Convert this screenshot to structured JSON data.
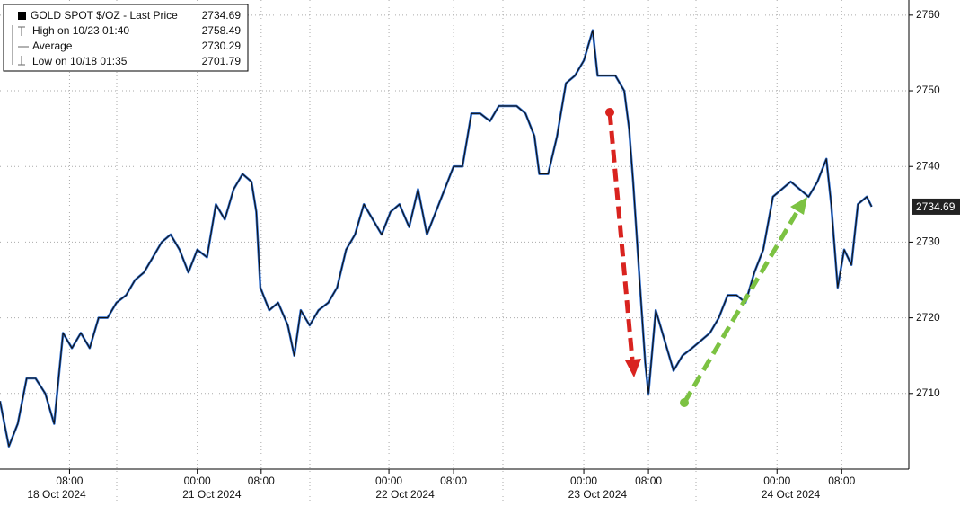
{
  "chart_data": {
    "type": "line",
    "series": [
      {
        "name": "GOLD SPOT $/OZ - Last Price",
        "color": "#111111",
        "x": [
          0,
          1.1,
          2.2,
          3.3,
          4.4,
          5.6,
          6.7,
          7.8,
          8.9,
          10,
          11.1,
          12.2,
          13.3,
          14.4,
          15.6,
          16.7,
          17.8,
          18.9,
          20,
          21.1,
          22.2,
          23.3,
          24.4,
          25.6,
          26.7,
          27.8,
          28.9,
          30,
          31.1,
          31.7,
          32.2,
          33.3,
          34.4,
          35.6,
          36.4,
          37.2,
          38.3,
          39.4,
          40.6,
          41.7,
          42.8,
          43.9,
          45,
          46.1,
          47.2,
          48.3,
          49.4,
          50.6,
          51.7,
          52.8,
          53.9,
          55,
          56.1,
          57.2,
          58.3,
          59.4,
          60.6,
          61.7,
          62.8,
          63.9,
          65,
          66.1,
          66.7,
          67.8,
          68.9,
          70,
          71.1,
          72.2,
          73.3,
          73.9,
          75,
          76.1,
          77.2,
          77.8,
          78.3,
          79.1,
          79.8,
          80.2,
          81.1,
          82.2,
          83.3,
          84.4,
          85.6,
          86.7,
          87.8,
          88.9,
          90,
          91.1,
          92.2,
          93.3,
          94.4,
          95.6,
          96.7,
          97.8,
          98.9,
          100,
          101.1,
          102.2,
          102.8,
          103.6,
          104.4,
          105.3,
          106.1,
          107.2,
          107.8
        ],
        "values": [
          2709,
          2703,
          2706,
          2712,
          2712,
          2710,
          2706,
          2718,
          2716,
          2718,
          2716,
          2720,
          2720,
          2722,
          2723,
          2725,
          2726,
          2728,
          2730,
          2731,
          2729,
          2726,
          2729,
          2728,
          2735,
          2733,
          2737,
          2739,
          2738,
          2734,
          2724,
          2721,
          2722,
          2719,
          2715,
          2721,
          2719,
          2721,
          2722,
          2724,
          2729,
          2731,
          2735,
          2733,
          2731,
          2734,
          2735,
          2732,
          2737,
          2731,
          2734,
          2737,
          2740,
          2740,
          2747,
          2747,
          2746,
          2748,
          2748,
          2748,
          2747,
          2744,
          2739,
          2739,
          2744,
          2751,
          2752,
          2754,
          2758,
          2752,
          2752,
          2752,
          2750,
          2745,
          2738,
          2725,
          2714,
          2710,
          2721,
          2717,
          2713,
          2715,
          2716,
          2717,
          2718,
          2720,
          2723,
          2723,
          2722,
          2726,
          2729,
          2736,
          2737,
          2738,
          2737,
          2736,
          2738,
          2741,
          2735,
          2724,
          2729,
          2727,
          2735,
          2736,
          2734.69
        ]
      }
    ],
    "legend": [
      {
        "label": "GOLD SPOT $/OZ - Last Price",
        "value": "2734.69"
      },
      {
        "label": "High on 10/23 01:40",
        "value": "2758.49"
      },
      {
        "label": "Average",
        "value": "2730.29"
      },
      {
        "label": "Low on 10/18 01:35",
        "value": "2701.79"
      }
    ],
    "last_price_label": "2734.69",
    "xlim": [
      0,
      112.4
    ],
    "ylim": [
      2700,
      2762
    ],
    "yticks": [
      2710,
      2720,
      2730,
      2740,
      2750,
      2760
    ],
    "xticks": [
      {
        "value": 8.6,
        "label": "08:00"
      },
      {
        "value": 24.4,
        "label": "00:00"
      },
      {
        "value": 32.3,
        "label": "08:00"
      },
      {
        "value": 48.1,
        "label": "00:00"
      },
      {
        "value": 56.1,
        "label": "08:00"
      },
      {
        "value": 72.2,
        "label": "00:00"
      },
      {
        "value": 80.2,
        "label": "08:00"
      },
      {
        "value": 96.1,
        "label": "00:00"
      },
      {
        "value": 104.1,
        "label": "08:00"
      }
    ],
    "date_labels": [
      {
        "value": 7,
        "label": "18 Oct 2024"
      },
      {
        "value": 26.2,
        "label": "21 Oct 2024"
      },
      {
        "value": 50.1,
        "label": "22 Oct 2024"
      },
      {
        "value": 73.9,
        "label": "23 Oct 2024"
      },
      {
        "value": 97.8,
        "label": "24 Oct 2024"
      }
    ],
    "grid": true
  }
}
